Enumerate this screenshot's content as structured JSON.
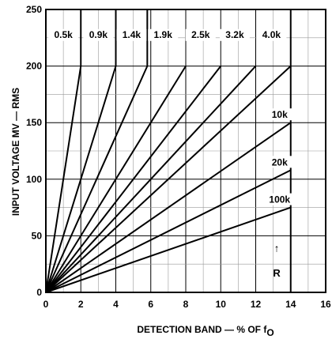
{
  "chart_data": {
    "type": "line",
    "title": "",
    "xlabel": "DETECTION BAND — % OF f",
    "xlabel_sub": "O",
    "ylabel": "INPUT VOLTAGE MV — RMS",
    "xlim": [
      0,
      16
    ],
    "ylim": [
      0,
      250
    ],
    "x_ticks": [
      0,
      2,
      4,
      6,
      8,
      10,
      12,
      14,
      16
    ],
    "y_ticks": [
      0,
      50,
      100,
      150,
      200,
      250
    ],
    "grid": true,
    "series": [
      {
        "name": "0.5k",
        "points": [
          [
            0,
            0
          ],
          [
            2,
            200
          ],
          [
            2,
            250
          ]
        ]
      },
      {
        "name": "0.9k",
        "points": [
          [
            0,
            0
          ],
          [
            4,
            200
          ],
          [
            4,
            250
          ]
        ]
      },
      {
        "name": "1.4k",
        "points": [
          [
            0,
            0
          ],
          [
            5.8,
            200
          ],
          [
            5.8,
            250
          ]
        ]
      },
      {
        "name": "1.9k",
        "points": [
          [
            0,
            0
          ],
          [
            8,
            200
          ]
        ]
      },
      {
        "name": "2.5k",
        "points": [
          [
            0,
            0
          ],
          [
            10,
            200
          ]
        ]
      },
      {
        "name": "3.2k",
        "points": [
          [
            0,
            0
          ],
          [
            12,
            200
          ]
        ]
      },
      {
        "name": "4.0k",
        "points": [
          [
            0,
            0
          ],
          [
            14,
            200
          ]
        ]
      },
      {
        "name": "10k",
        "points": [
          [
            0,
            0
          ],
          [
            14,
            150
          ]
        ]
      },
      {
        "name": "20k",
        "points": [
          [
            0,
            0
          ],
          [
            14,
            108
          ]
        ]
      },
      {
        "name": "100k",
        "points": [
          [
            0,
            0
          ],
          [
            14,
            75
          ]
        ]
      }
    ],
    "boundary": {
      "points": [
        [
          14,
          0
        ],
        [
          14,
          250
        ]
      ]
    },
    "annotation": {
      "text": "R",
      "arrow": "↑"
    }
  }
}
